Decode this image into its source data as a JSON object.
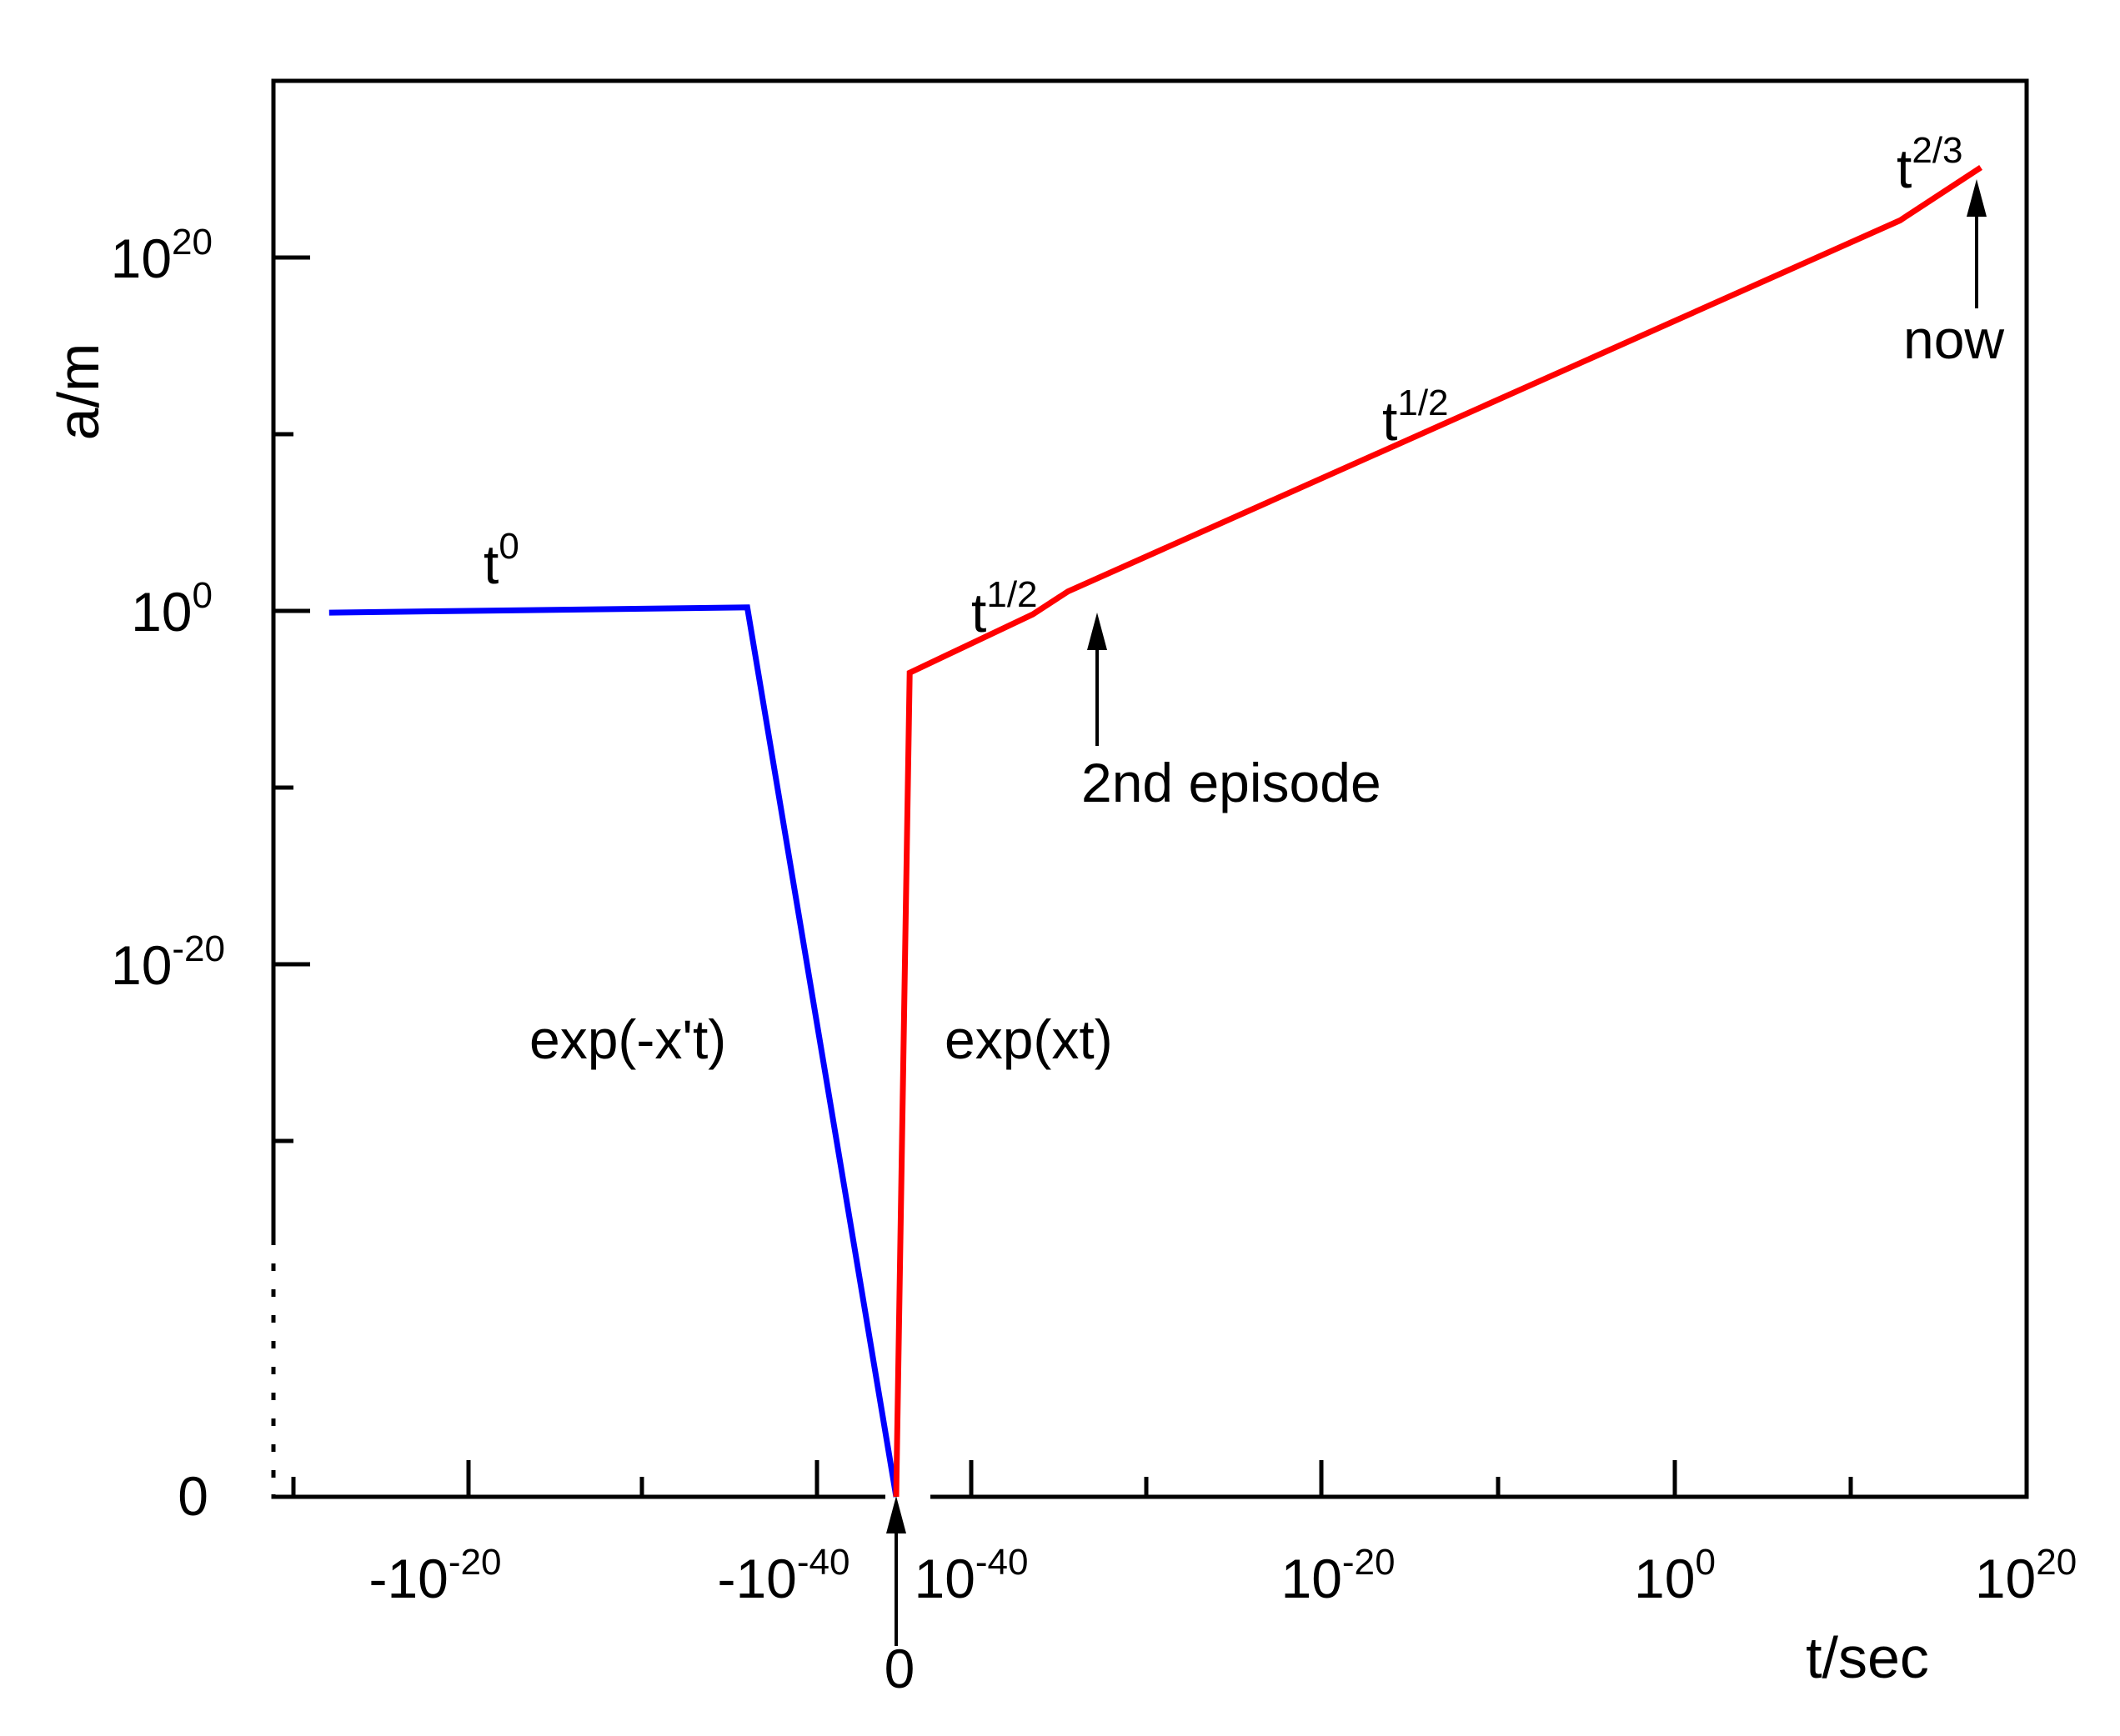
{
  "chart_data": {
    "type": "line",
    "xlabel": "t/sec",
    "ylabel": "a/m",
    "x_scale": "split-log",
    "y_scale": "log",
    "grid": false,
    "legend": "none",
    "x_ticks": [
      {
        "base": "-10",
        "exp": "-20",
        "x": "-10^-20"
      },
      {
        "base": "-10",
        "exp": "-40",
        "x": "-10^-40"
      },
      {
        "base": "0",
        "exp": "",
        "x": "0"
      },
      {
        "base": "10",
        "exp": "-40",
        "x": "10^-40"
      },
      {
        "base": "10",
        "exp": "-20",
        "x": "10^-20"
      },
      {
        "base": "10",
        "exp": "0",
        "x": "10^0"
      },
      {
        "base": "10",
        "exp": "20",
        "x": "10^20"
      }
    ],
    "y_ticks": [
      {
        "base": "10",
        "exp": "20",
        "y": 20
      },
      {
        "base": "10",
        "exp": "0",
        "y": 0
      },
      {
        "base": "10",
        "exp": "-20",
        "y": -20
      },
      {
        "base": "0",
        "exp": "",
        "y": "zero"
      }
    ],
    "series": [
      {
        "color": "#0000ff",
        "points": [
          {
            "log_abs_t": -12,
            "log_a": -0.1
          },
          {
            "log_abs_t": -36,
            "log_a": 0.2
          },
          {
            "log_abs_t": "zero",
            "log_a": "zero"
          }
        ]
      },
      {
        "color": "#ff0000",
        "points": [
          {
            "log_abs_t": "zero",
            "log_a": "zero"
          },
          {
            "log_abs_t": -43.5,
            "log_a": -3.5
          },
          {
            "log_abs_t": -36.5,
            "log_a": -0.2
          },
          {
            "log_abs_t": -34.5,
            "log_a": 1.1
          },
          {
            "log_abs_t": 12.8,
            "log_a": 22.1
          },
          {
            "log_abs_t": 17.4,
            "log_a": 25.1
          }
        ]
      }
    ],
    "annotations": [
      {
        "id": "t0",
        "base": "t",
        "sup": "0"
      },
      {
        "id": "t-half-1",
        "base": "t",
        "sup": "1/2"
      },
      {
        "id": "t-half-2",
        "base": "t",
        "sup": "1/2"
      },
      {
        "id": "t-two-thirds",
        "base": "t",
        "sup": "2/3"
      },
      {
        "id": "exp-neg",
        "text": "exp(-x't)"
      },
      {
        "id": "exp-pos",
        "text": "exp(xt)"
      },
      {
        "id": "second-episode",
        "text": "2nd episode"
      },
      {
        "id": "now",
        "text": "now"
      },
      {
        "id": "zero-marker",
        "text": "0"
      }
    ]
  }
}
